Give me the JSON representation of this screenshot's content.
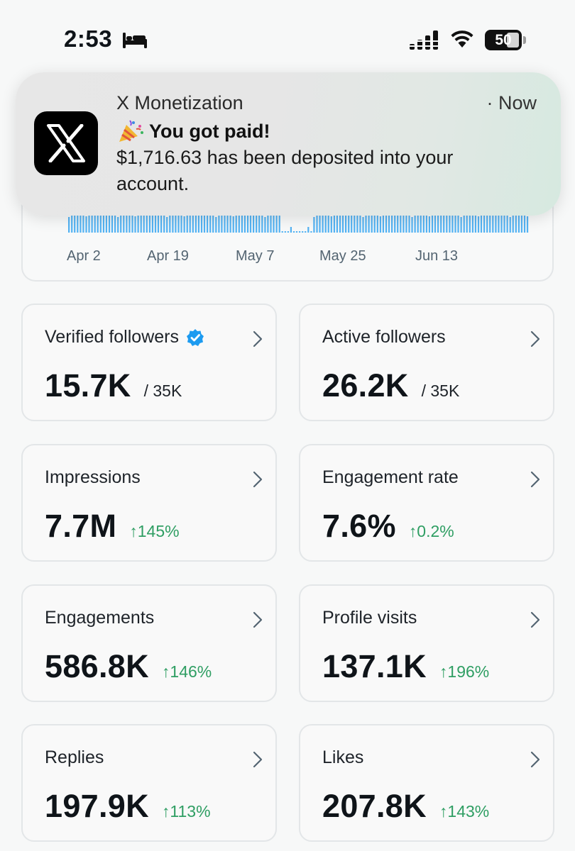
{
  "status_bar": {
    "time": "2:53",
    "battery": "50",
    "focus_icon": "bed-icon",
    "signal_icon": "signal-icon",
    "wifi_icon": "wifi-icon"
  },
  "notification": {
    "app_name": "X Monetization",
    "time": "· Now",
    "title": "You got paid!",
    "body": "$1,716.63 has been deposited into your account.",
    "icon": "x-logo-icon",
    "emoji": "party-popper-icon"
  },
  "chart": {
    "x_labels": [
      "Apr 2",
      "Apr 19",
      "May 7",
      "May 25",
      "Jun 13"
    ],
    "bar_color": "#1d9bf0"
  },
  "metrics": [
    {
      "label": "Verified followers",
      "value": "15.7K",
      "sub": "/ 35K",
      "verified": true
    },
    {
      "label": "Active followers",
      "value": "26.2K",
      "sub": "/ 35K"
    },
    {
      "label": "Impressions",
      "value": "7.7M",
      "change": "↑145%"
    },
    {
      "label": "Engagement rate",
      "value": "7.6%",
      "change": "↑0.2%"
    },
    {
      "label": "Engagements",
      "value": "586.8K",
      "change": "↑146%"
    },
    {
      "label": "Profile visits",
      "value": "137.1K",
      "change": "↑196%"
    },
    {
      "label": "Replies",
      "value": "197.9K",
      "change": "↑113%"
    },
    {
      "label": "Likes",
      "value": "207.8K",
      "change": "↑143%"
    }
  ],
  "colors": {
    "positive_change": "#2f9e63",
    "verified_badge": "#1d9bf0"
  }
}
